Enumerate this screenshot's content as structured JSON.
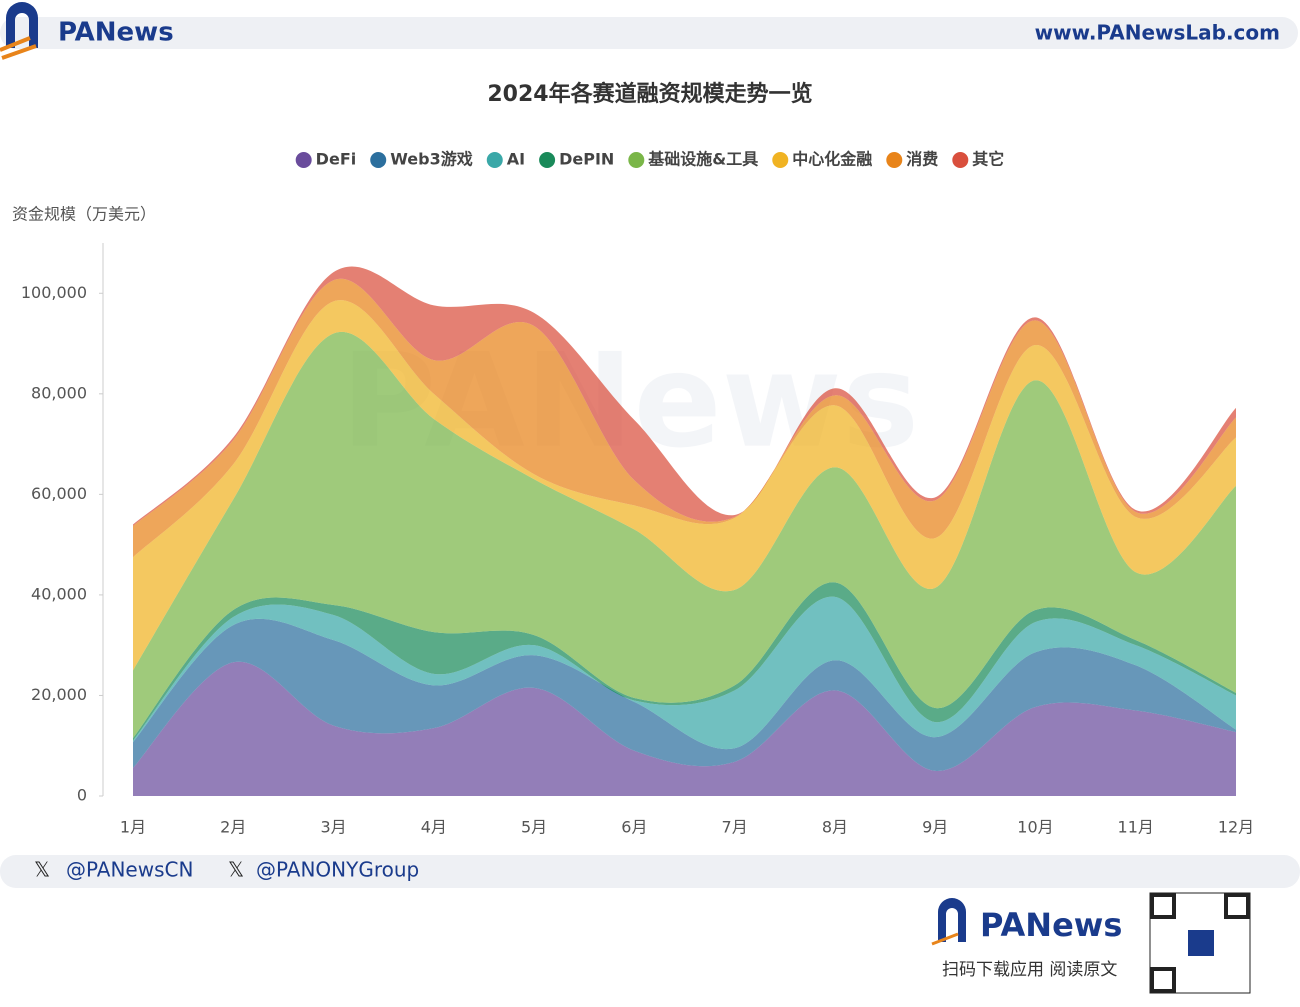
{
  "header": {
    "brand": "PANews",
    "url": "www.PANewsLab.com"
  },
  "footer": {
    "handles": [
      "@PANewsCN",
      "@PANONYGroup"
    ],
    "brand": "PANews",
    "app_text": "扫码下载应用  阅读原文"
  },
  "chart_data": {
    "type": "area",
    "stacked": true,
    "smooth": true,
    "title": "2024年各赛道融资规模走势一览",
    "y_label": "资金规模（万美元）",
    "categories": [
      "1月",
      "2月",
      "3月",
      "4月",
      "5月",
      "6月",
      "7月",
      "8月",
      "9月",
      "10月",
      "11月",
      "12月"
    ],
    "series": [
      {
        "name": "DeFi",
        "color": "#6a4c9c",
        "values": [
          5600,
          26600,
          14000,
          13500,
          21500,
          9000,
          6800,
          21000,
          5000,
          17700,
          17000,
          12700
        ]
      },
      {
        "name": "Web3游戏",
        "color": "#2c6f9e",
        "values": [
          5100,
          7400,
          17000,
          8500,
          6500,
          9700,
          2700,
          6000,
          6700,
          10900,
          9000,
          500
        ]
      },
      {
        "name": "AI",
        "color": "#3aa8a8",
        "values": [
          300,
          1600,
          5000,
          2300,
          2000,
          300,
          11500,
          12600,
          3000,
          6000,
          4000,
          6800
        ]
      },
      {
        "name": "DePIN",
        "color": "#1a8a5a",
        "values": [
          500,
          1400,
          2000,
          8300,
          2000,
          500,
          1000,
          2900,
          2800,
          2400,
          1000,
          500
        ]
      },
      {
        "name": "基础设施&工具",
        "color": "#7ab648",
        "values": [
          13500,
          22000,
          54000,
          42400,
          31000,
          33500,
          19000,
          22900,
          23900,
          45700,
          13500,
          41200
        ]
      },
      {
        "name": "中心化金融",
        "color": "#f0b323",
        "values": [
          22500,
          7000,
          6400,
          5000,
          1000,
          4800,
          14300,
          12300,
          9900,
          7000,
          11000,
          9600
        ]
      },
      {
        "name": "消费",
        "color": "#e8841a",
        "values": [
          6200,
          4800,
          4200,
          6700,
          29500,
          5000,
          200,
          2000,
          7500,
          4900,
          1000,
          4000
        ]
      },
      {
        "name": "其它",
        "color": "#d94f3d",
        "values": [
          300,
          500,
          1600,
          10900,
          2600,
          12000,
          400,
          1400,
          600,
          600,
          400,
          1900
        ]
      }
    ],
    "ylim": [
      0,
      110000
    ],
    "yticks": [
      0,
      {
        "value": 20000,
        "label": "20,000"
      },
      {
        "value": 40000,
        "label": "40,000"
      },
      {
        "value": 60000,
        "label": "60,000"
      },
      {
        "value": 80000,
        "label": "80,000"
      },
      {
        "value": 100000,
        "label": "100,000"
      }
    ],
    "grid": false,
    "legend": "top"
  }
}
